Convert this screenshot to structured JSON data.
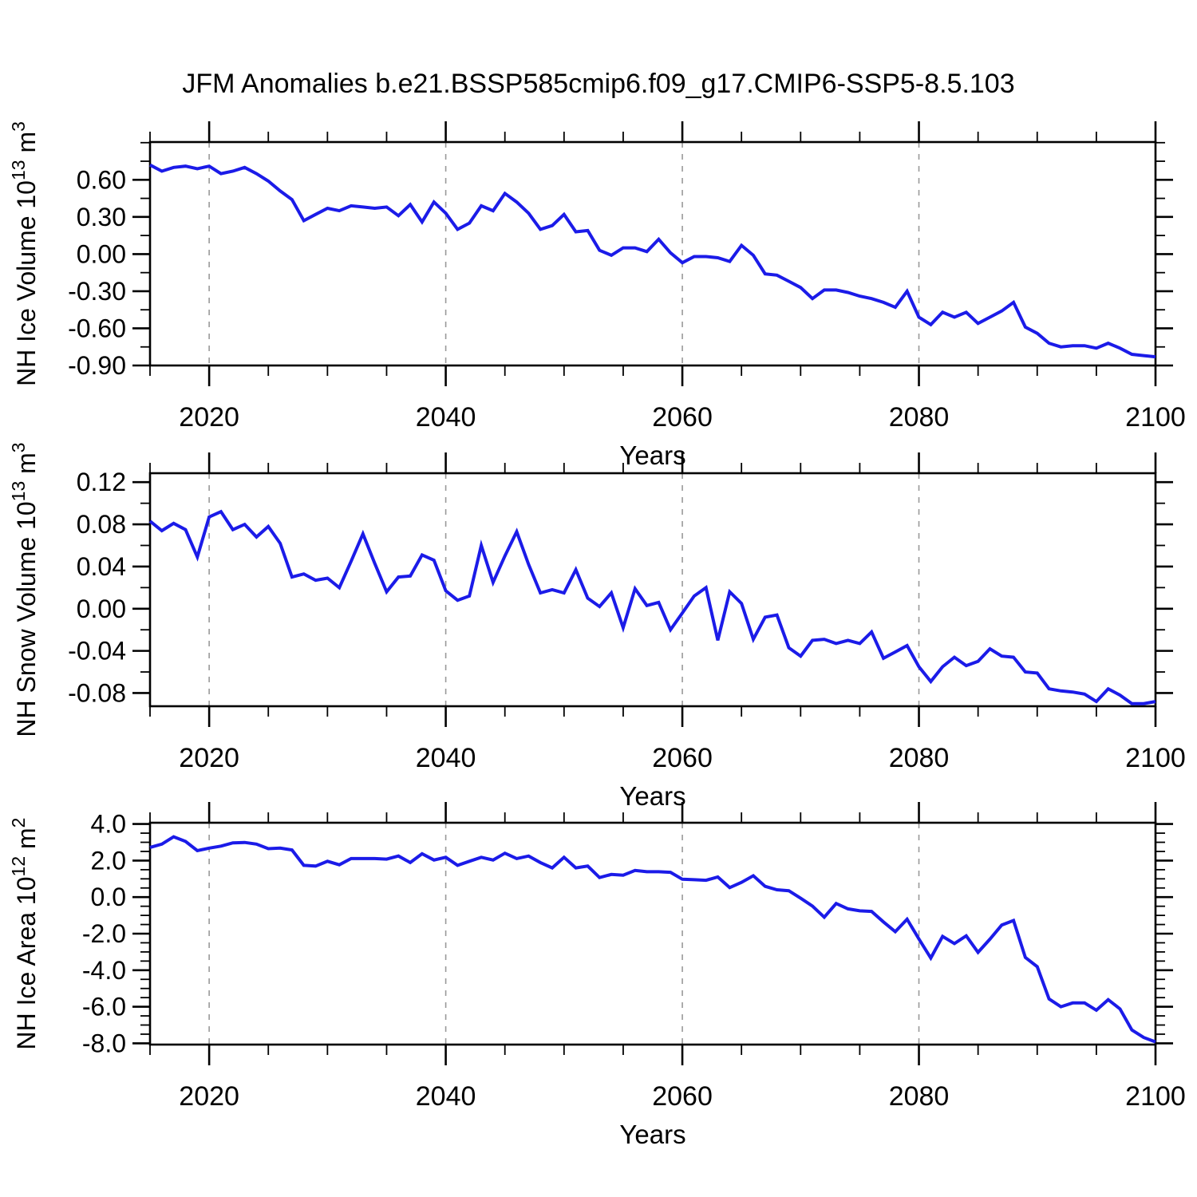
{
  "title": "JFM Anomalies b.e21.BSSP585cmip6.f09_g17.CMIP6-SSP5-8.5.103",
  "colors": {
    "line": "#1B1BE8",
    "grid": "#999999",
    "axis": "#000000"
  },
  "chart_data": [
    {
      "type": "line",
      "name": "nh-ice-volume",
      "ylabel_segments": [
        {
          "t": "NH Ice Volume 10"
        },
        {
          "t": "13",
          "sup": true
        },
        {
          "t": " m"
        },
        {
          "t": "3",
          "sup": true
        }
      ],
      "xlabel": "Years",
      "xlim": [
        2015,
        2100
      ],
      "xticks": {
        "major": [
          2020,
          2040,
          2060,
          2080,
          2100
        ],
        "labels": [
          "2020",
          "2040",
          "2060",
          "2080",
          "2100"
        ],
        "minor_step": 5,
        "grid": [
          2020,
          2040,
          2060,
          2080
        ]
      },
      "ylim": [
        -0.9,
        0.905
      ],
      "yticks": {
        "major": [
          0.6,
          0.3,
          0.0,
          -0.3,
          -0.6,
          -0.9
        ],
        "labels": [
          "0.60",
          "0.30",
          "0.00",
          "-0.30",
          "-0.60",
          "-0.90"
        ],
        "minor_step": 0.15
      },
      "years": {
        "start": 2015,
        "end": 2100,
        "step": 1
      },
      "values": [
        0.72,
        0.67,
        0.7,
        0.71,
        0.69,
        0.71,
        0.65,
        0.67,
        0.7,
        0.65,
        0.59,
        0.51,
        0.44,
        0.27,
        0.32,
        0.37,
        0.35,
        0.39,
        0.38,
        0.37,
        0.38,
        0.31,
        0.4,
        0.26,
        0.42,
        0.33,
        0.2,
        0.25,
        0.39,
        0.35,
        0.49,
        0.42,
        0.33,
        0.2,
        0.23,
        0.32,
        0.18,
        0.19,
        0.03,
        -0.01,
        0.05,
        0.05,
        0.02,
        0.12,
        0.01,
        -0.07,
        -0.02,
        -0.02,
        -0.03,
        -0.06,
        0.07,
        -0.01,
        -0.16,
        -0.17,
        -0.22,
        -0.27,
        -0.36,
        -0.29,
        -0.29,
        -0.31,
        -0.34,
        -0.36,
        -0.39,
        -0.43,
        -0.3,
        -0.51,
        -0.57,
        -0.47,
        -0.51,
        -0.47,
        -0.56,
        -0.51,
        -0.46,
        -0.39,
        -0.59,
        -0.64,
        -0.72,
        -0.75,
        -0.74,
        -0.74,
        -0.76,
        -0.72,
        -0.76,
        -0.81,
        -0.82,
        -0.83
      ]
    },
    {
      "type": "line",
      "name": "nh-snow-volume",
      "ylabel_segments": [
        {
          "t": "NH Snow Volume 10"
        },
        {
          "t": "13",
          "sup": true
        },
        {
          "t": " m"
        },
        {
          "t": "3",
          "sup": true
        }
      ],
      "xlabel": "Years",
      "xlim": [
        2015,
        2100
      ],
      "xticks": {
        "major": [
          2020,
          2040,
          2060,
          2080,
          2100
        ],
        "labels": [
          "2020",
          "2040",
          "2060",
          "2080",
          "2100"
        ],
        "minor_step": 5,
        "grid": [
          2020,
          2040,
          2060,
          2080
        ]
      },
      "ylim": [
        -0.0925,
        0.1285
      ],
      "yticks": {
        "major": [
          0.12,
          0.08,
          0.04,
          0.0,
          -0.04,
          -0.08
        ],
        "labels": [
          "0.12",
          "0.08",
          "0.04",
          "0.00",
          "-0.04",
          "-0.08"
        ],
        "minor_step": 0.02
      },
      "years": {
        "start": 2015,
        "end": 2100,
        "step": 1
      },
      "values": [
        0.083,
        0.074,
        0.081,
        0.075,
        0.049,
        0.087,
        0.092,
        0.075,
        0.08,
        0.068,
        0.078,
        0.062,
        0.03,
        0.033,
        0.027,
        0.029,
        0.02,
        0.045,
        0.071,
        0.043,
        0.016,
        0.03,
        0.031,
        0.051,
        0.046,
        0.017,
        0.008,
        0.012,
        0.06,
        0.025,
        0.05,
        0.073,
        0.042,
        0.015,
        0.018,
        0.015,
        0.037,
        0.01,
        0.002,
        0.015,
        -0.018,
        0.019,
        0.003,
        0.006,
        -0.02,
        -0.004,
        0.012,
        0.02,
        -0.03,
        0.016,
        0.005,
        -0.029,
        -0.008,
        -0.006,
        -0.037,
        -0.045,
        -0.03,
        -0.029,
        -0.033,
        -0.03,
        -0.033,
        -0.022,
        -0.047,
        -0.041,
        -0.035,
        -0.055,
        -0.069,
        -0.055,
        -0.046,
        -0.054,
        -0.05,
        -0.038,
        -0.045,
        -0.046,
        -0.06,
        -0.061,
        -0.076,
        -0.078,
        -0.079,
        -0.081,
        -0.088,
        -0.076,
        -0.082,
        -0.09,
        -0.09,
        -0.088
      ]
    },
    {
      "type": "line",
      "name": "nh-ice-area",
      "ylabel_segments": [
        {
          "t": "NH Ice Area 10"
        },
        {
          "t": "12",
          "sup": true
        },
        {
          "t": " m"
        },
        {
          "t": "2",
          "sup": true
        }
      ],
      "xlabel": "Years",
      "xlim": [
        2015,
        2100
      ],
      "xticks": {
        "major": [
          2020,
          2040,
          2060,
          2080,
          2100
        ],
        "labels": [
          "2020",
          "2040",
          "2060",
          "2080",
          "2100"
        ],
        "minor_step": 5,
        "grid": [
          2020,
          2040,
          2060,
          2080
        ]
      },
      "ylim": [
        -8.07,
        4.07
      ],
      "yticks": {
        "major": [
          4.0,
          2.0,
          0.0,
          -2.0,
          -4.0,
          -6.0,
          -8.0
        ],
        "labels": [
          "4.0",
          "2.0",
          "0.0",
          "-2.0",
          "-4.0",
          "-6.0",
          "-8.0"
        ],
        "minor_step": 0.5
      },
      "years": {
        "start": 2015,
        "end": 2100,
        "step": 1
      },
      "values": [
        2.72,
        2.9,
        3.3,
        3.05,
        2.54,
        2.68,
        2.79,
        2.97,
        2.99,
        2.9,
        2.65,
        2.68,
        2.58,
        1.74,
        1.7,
        1.96,
        1.77,
        2.11,
        2.11,
        2.11,
        2.08,
        2.25,
        1.89,
        2.37,
        2.03,
        2.18,
        1.74,
        1.96,
        2.18,
        2.03,
        2.4,
        2.11,
        2.25,
        1.89,
        1.6,
        2.18,
        1.6,
        1.7,
        1.07,
        1.24,
        1.2,
        1.46,
        1.39,
        1.39,
        1.36,
        0.98,
        0.95,
        0.92,
        1.1,
        0.52,
        0.81,
        1.17,
        0.59,
        0.4,
        0.35,
        -0.06,
        -0.49,
        -1.1,
        -0.35,
        -0.64,
        -0.75,
        -0.78,
        -1.36,
        -1.89,
        -1.21,
        -2.29,
        -3.33,
        -2.15,
        -2.54,
        -2.12,
        -3.02,
        -2.3,
        -1.53,
        -1.28,
        -3.3,
        -3.81,
        -5.57,
        -6.0,
        -5.79,
        -5.79,
        -6.19,
        -5.61,
        -6.12,
        -7.27,
        -7.68,
        -7.92
      ]
    }
  ]
}
